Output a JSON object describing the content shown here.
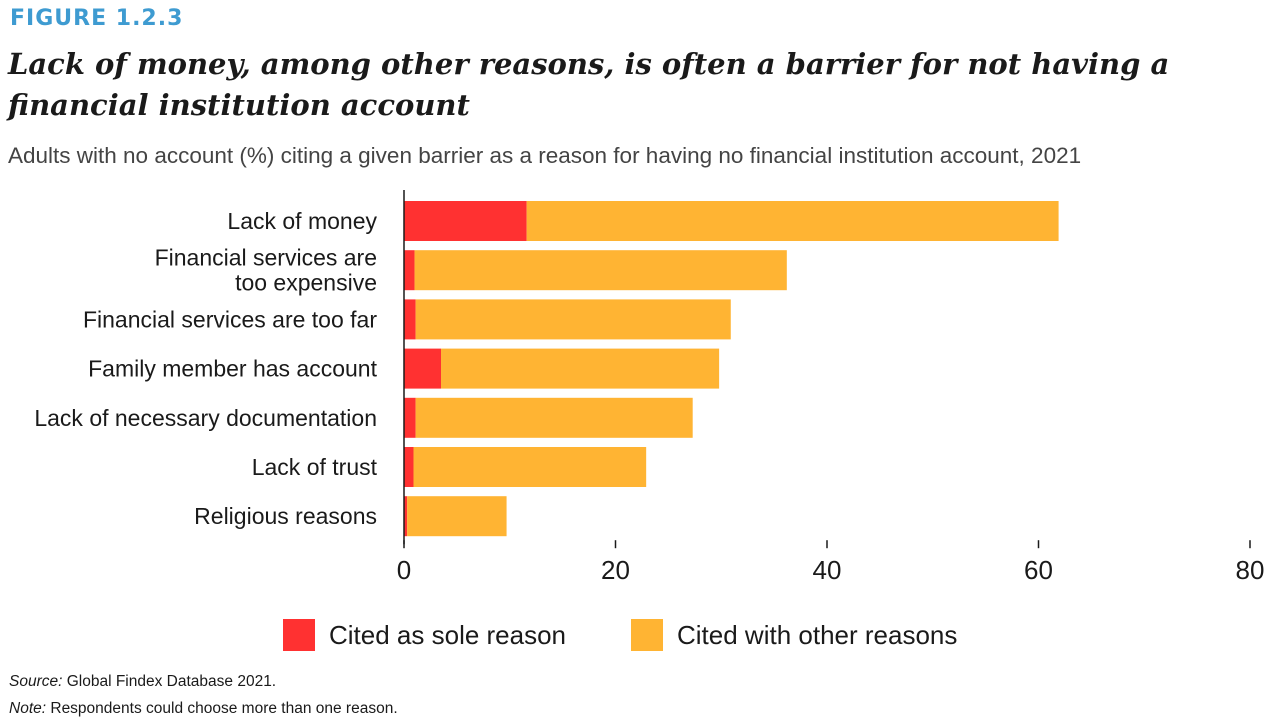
{
  "header": {
    "figure_label": "FIGURE 1.2.3",
    "title": "Lack of money, among other reasons, is often a barrier for not having a financial institution account",
    "subtitle": "Adults with no account (%) citing a given barrier as a reason for having no financial institution account, 2021"
  },
  "footer": {
    "source_label": "Source:",
    "source_text": " Global Findex Database 2021.",
    "note_label": "Note:",
    "note_text": " Respondents could choose more than one reason."
  },
  "colors": {
    "sole": "#ff3131",
    "other": "#ffb433",
    "figure_label": "#3e9bd1"
  },
  "chart_data": {
    "type": "bar",
    "orientation": "horizontal",
    "stacked": true,
    "categories": [
      "Lack of money",
      "Financial services are too expensive",
      "Financial services are too far",
      "Family member has account",
      "Lack of necessary documentation",
      "Lack of trust",
      "Religious reasons"
    ],
    "category_lines": [
      [
        "Lack of money"
      ],
      [
        "Financial services are",
        "too expensive"
      ],
      [
        "Financial services are too far"
      ],
      [
        "Family member has account"
      ],
      [
        "Lack of necessary documentation"
      ],
      [
        "Lack of trust"
      ],
      [
        "Religious reasons"
      ]
    ],
    "series": [
      {
        "name": "Cited as sole reason",
        "values": [
          11.6,
          1.0,
          1.1,
          3.5,
          1.1,
          0.9,
          0.3
        ]
      },
      {
        "name": "Cited with other reasons",
        "values": [
          50.3,
          35.2,
          29.8,
          26.3,
          26.2,
          22.0,
          9.4
        ]
      }
    ],
    "totals": [
      61.9,
      36.2,
      30.9,
      29.8,
      27.3,
      22.9,
      9.7
    ],
    "xlim": [
      0,
      80
    ],
    "xticks": [
      0,
      20,
      40,
      60,
      80
    ],
    "xlabel": "",
    "ylabel": "",
    "grid": false,
    "legend_position": "bottom"
  }
}
